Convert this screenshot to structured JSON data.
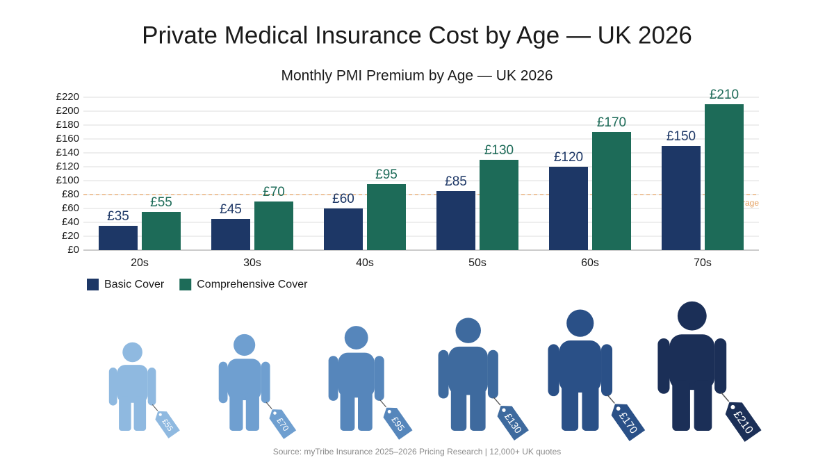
{
  "title": "Private Medical Insurance Cost by Age — UK 2026",
  "chart_data": {
    "type": "bar",
    "title": "Monthly PMI Premium by Age — UK 2026",
    "categories": [
      "20s",
      "30s",
      "40s",
      "50s",
      "60s",
      "70s"
    ],
    "series": [
      {
        "name": "Basic Cover",
        "color": "#1d3766",
        "values": [
          35,
          45,
          60,
          85,
          120,
          150
        ],
        "value_labels": [
          "£35",
          "£45",
          "£60",
          "£85",
          "£120",
          "£150"
        ]
      },
      {
        "name": "Comprehensive Cover",
        "color": "#1d6b58",
        "values": [
          55,
          70,
          95,
          130,
          170,
          210
        ],
        "value_labels": [
          "£55",
          "£70",
          "£95",
          "£130",
          "£170",
          "£210"
        ]
      }
    ],
    "ylim": [
      0,
      220
    ],
    "yticks": [
      {
        "value": 0,
        "label": "£0"
      },
      {
        "value": 20,
        "label": "£20"
      },
      {
        "value": 40,
        "label": "£40"
      },
      {
        "value": 60,
        "label": "£60"
      },
      {
        "value": 80,
        "label": "£80"
      },
      {
        "value": 100,
        "label": "£100"
      },
      {
        "value": 120,
        "label": "£120"
      },
      {
        "value": 140,
        "label": "£140"
      },
      {
        "value": 160,
        "label": "£160"
      },
      {
        "value": 180,
        "label": "£180"
      },
      {
        "value": 200,
        "label": "£200"
      },
      {
        "value": 220,
        "label": "£220"
      }
    ],
    "grid": true,
    "reference_line": {
      "value": 80,
      "label": "UK Average",
      "color": "#e3a060"
    },
    "legend": "bottom-left"
  },
  "source": "Source: myTribe Insurance 2025–2026 Pricing Research | 12,000+ UK quotes"
}
